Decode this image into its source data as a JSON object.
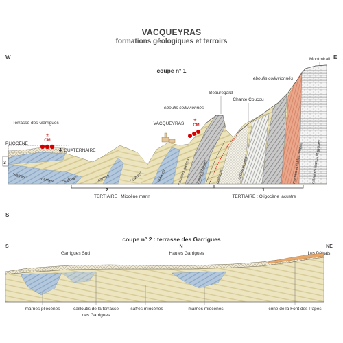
{
  "header": {
    "title": "VACQUEYRAS",
    "subtitle": "formations géologiques et terroirs"
  },
  "section1": {
    "title": "coupe n° 1",
    "orient_left": "W",
    "orient_right": "E",
    "places": {
      "montmirail": "Montmirail",
      "beauregard": "Beauregard",
      "chante_coucou": "Chante Coucou",
      "vacqueyras": "VACQUEYRAS",
      "terrasse": "Terrasse des Garrigues"
    },
    "eboulis_1": "éboulis colluvionnés",
    "eboulis_2": "éboulis colluvionnés",
    "pliocene": "PLIOCÈNE",
    "quaternaire": "QUATERNAIRE",
    "num_3": "3",
    "num_4": "4",
    "num_2": "2",
    "num_1": "1",
    "layers": {
      "safres_1": "\"safres\"",
      "marnes_1": "marnes",
      "safres_2": "\"safres\"",
      "marnes_2": "marnes",
      "safres_3": "\"safres\"",
      "marnes_3": "marnes",
      "calcaires": "calcaires gréseux",
      "marnes_bleues": "marnes bleues",
      "cailloutis": "cailloutis",
      "sables": "sables et grès",
      "marnes_sables": "marnes et sables rouges",
      "calcaires_blancs": "calcaires blancs et gypses"
    },
    "tertiaire_2": "TERTIAIRE : Miocène marin",
    "tertiaire_1": "TERTIAIRE : Oligocène lacustre",
    "cm_logo": "CM"
  },
  "section2": {
    "orient_left_top": "S",
    "title": "coupe n° 2 : terrasse des Garrigues",
    "orient_left": "S",
    "orient_mid": "N",
    "orient_right": "NE",
    "places": {
      "garrigues_sud": "Garrigues Sud",
      "hautes_garrigues": "Hautes Garrigues",
      "les_debats": "Les Débats"
    },
    "legend": {
      "marnes_plioc": "marnes pliocènes",
      "cailloutis_1": "cailloutis de la terrasse",
      "cailloutis_2": "des Garrigues",
      "safres": "safres miocènes",
      "marnes_mioc": "marnes miocènes",
      "cone": "cône de la Font des Papes"
    }
  },
  "colors": {
    "sand": "#e8dfb3",
    "sand_stripe": "#cfc48c",
    "blue": "#a9c2d8",
    "blue_dark": "#6f8fb0",
    "red_dots": "#d40000",
    "salmon": "#e8a184",
    "grey_rock": "#b9b9b9"
  }
}
